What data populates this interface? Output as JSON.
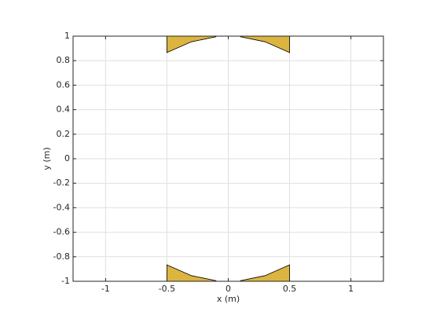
{
  "chart_data": {
    "type": "polygon",
    "xlabel": "x (m)",
    "ylabel": "y (m)",
    "xlim": [
      -1.265,
      1.265
    ],
    "ylim": [
      -1,
      1
    ],
    "xticks": [
      -1,
      -0.5,
      0,
      0.5,
      1
    ],
    "yticks": [
      -1,
      -0.8,
      -0.6,
      -0.4,
      -0.2,
      0,
      0.2,
      0.4,
      0.6,
      0.8,
      1
    ],
    "grid": true,
    "series": [
      {
        "color": "#dbb540",
        "x": [
          -0.5,
          -0.1,
          -0.1,
          -0.3,
          -0.5
        ],
        "values": [
          1,
          1,
          0.995,
          0.954,
          0.866
        ]
      },
      {
        "color": "#dbb540",
        "x": [
          0.1,
          0.5,
          0.5,
          0.3,
          0.1
        ],
        "values": [
          1,
          1,
          0.866,
          0.954,
          0.995
        ]
      },
      {
        "color": "#dbb540",
        "x": [
          -0.5,
          -0.1,
          -0.1,
          -0.3,
          -0.5
        ],
        "values": [
          -1,
          -1,
          -0.995,
          -0.954,
          -0.866
        ]
      },
      {
        "color": "#dbb540",
        "x": [
          0.1,
          0.5,
          0.5,
          0.3,
          0.1
        ],
        "values": [
          -1,
          -1,
          -0.866,
          -0.954,
          -0.995
        ]
      }
    ]
  }
}
